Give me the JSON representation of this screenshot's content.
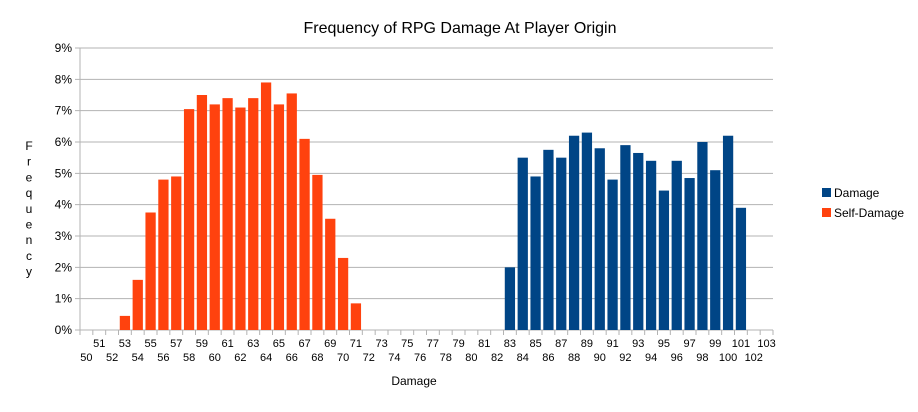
{
  "chart_data": {
    "type": "bar",
    "title": "Frequency of RPG Damage At Player Origin",
    "xlabel": "Damage",
    "ylabel": "Frequency",
    "ylim": [
      0,
      9
    ],
    "y_unit": "%",
    "grid": true,
    "legend_position": "right",
    "categories": [
      "50",
      "51",
      "52",
      "53",
      "54",
      "55",
      "56",
      "57",
      "58",
      "59",
      "60",
      "61",
      "62",
      "63",
      "64",
      "65",
      "66",
      "67",
      "68",
      "69",
      "70",
      "71",
      "72",
      "73",
      "74",
      "75",
      "76",
      "77",
      "78",
      "79",
      "80",
      "81",
      "82",
      "83",
      "84",
      "85",
      "86",
      "87",
      "88",
      "89",
      "90",
      "91",
      "92",
      "93",
      "94",
      "95",
      "96",
      "97",
      "98",
      "99",
      "100",
      "101",
      "102",
      "103"
    ],
    "series": [
      {
        "name": "Damage",
        "color": "#004586",
        "values": [
          null,
          null,
          null,
          null,
          null,
          null,
          null,
          null,
          null,
          null,
          null,
          null,
          null,
          null,
          null,
          null,
          null,
          null,
          null,
          null,
          null,
          null,
          null,
          null,
          null,
          null,
          null,
          null,
          null,
          null,
          null,
          null,
          null,
          2.0,
          5.5,
          4.9,
          5.75,
          5.5,
          6.2,
          6.3,
          5.8,
          4.8,
          5.9,
          5.65,
          5.4,
          4.45,
          5.4,
          4.85,
          6.0,
          5.1,
          6.2,
          3.9,
          null,
          null
        ]
      },
      {
        "name": "Self-Damage",
        "color": "#ff420e",
        "values": [
          null,
          null,
          null,
          0.45,
          1.6,
          3.75,
          4.8,
          4.9,
          7.05,
          7.5,
          7.2,
          7.4,
          7.1,
          7.4,
          7.9,
          7.2,
          7.55,
          6.1,
          4.95,
          3.55,
          2.3,
          0.85,
          null,
          null,
          null,
          null,
          null,
          null,
          null,
          null,
          null,
          null,
          null,
          null,
          null,
          null,
          null,
          null,
          null,
          null,
          null,
          null,
          null,
          null,
          null,
          null,
          null,
          null,
          null,
          null,
          null,
          null,
          null,
          null
        ]
      }
    ]
  }
}
